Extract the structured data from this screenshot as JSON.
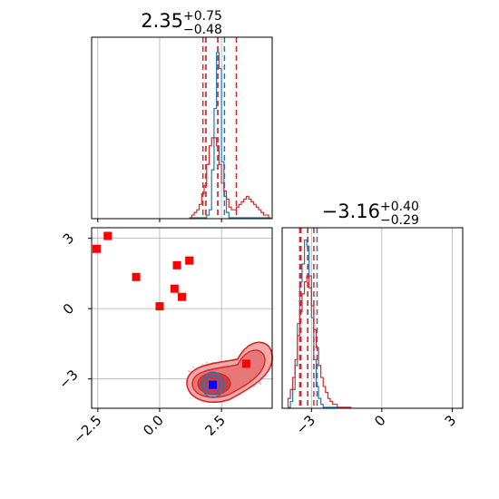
{
  "chart_data": [
    {
      "panel": "marginal-x",
      "type": "histogram",
      "title": {
        "main": "2.35",
        "sup": "+0.75",
        "sub": "−0.48"
      },
      "xlim": [
        -2.75,
        4.55
      ],
      "grid": true,
      "bin_edges": [
        1.2,
        1.3,
        1.4,
        1.5,
        1.6,
        1.7,
        1.8,
        1.9,
        2.0,
        2.1,
        2.2,
        2.3,
        2.4,
        2.5,
        2.6,
        2.7,
        2.8,
        2.9,
        3.0,
        3.1,
        3.2,
        3.3,
        3.4,
        3.5,
        3.6,
        3.7,
        3.8,
        3.9,
        4.0,
        4.1,
        4.2,
        4.3,
        4.4,
        4.5
      ],
      "series": [
        {
          "color": "#1f77b4",
          "counts": [
            0,
            0,
            0,
            0,
            0,
            0,
            0,
            1,
            3,
            18,
            41,
            62,
            56,
            21,
            8,
            2,
            0,
            0,
            0,
            0,
            0,
            0,
            0,
            0,
            0,
            0,
            0,
            0,
            0,
            0,
            0,
            0,
            0
          ]
        },
        {
          "color": "#d62728",
          "counts": [
            0,
            1,
            2,
            3,
            5,
            9,
            12,
            20,
            27,
            30,
            30,
            27,
            20,
            13,
            10,
            7,
            4,
            3,
            3,
            4,
            5,
            6,
            7,
            8,
            7,
            6,
            5,
            4,
            3,
            2,
            1,
            1,
            0
          ]
        }
      ],
      "reference_lines": [
        {
          "color": "#1f77b4",
          "values": [
            1.87,
            2.35,
            2.62
          ]
        },
        {
          "color": "#d62728",
          "values": [
            1.75,
            1.87,
            2.35,
            3.1
          ]
        }
      ]
    },
    {
      "panel": "marginal-y",
      "type": "histogram",
      "title": {
        "main": "−3.16",
        "sup": "+0.40",
        "sub": "−0.29"
      },
      "xlim": [
        -4.25,
        3.45
      ],
      "xticks": [
        -3,
        0,
        3
      ],
      "xtick_labels": [
        "−3",
        "0",
        "3"
      ],
      "grid": true,
      "bin_edges": [
        -4.0,
        -3.9,
        -3.8,
        -3.7,
        -3.6,
        -3.5,
        -3.4,
        -3.3,
        -3.2,
        -3.1,
        -3.0,
        -2.9,
        -2.8,
        -2.7,
        -2.6,
        -2.5,
        -2.4,
        -2.3,
        -2.2,
        -2.1,
        -2.0,
        -1.9,
        -1.8,
        -1.7,
        -1.6,
        -1.5,
        -1.4,
        -1.3
      ],
      "series": [
        {
          "color": "#1f77b4",
          "counts": [
            0,
            2,
            6,
            14,
            28,
            42,
            48,
            56,
            54,
            44,
            30,
            16,
            7,
            3,
            1,
            0,
            0,
            0,
            0,
            0,
            0,
            0,
            0,
            0,
            0,
            0,
            0
          ]
        },
        {
          "color": "#d62728",
          "counts": [
            3,
            6,
            10,
            16,
            24,
            32,
            38,
            42,
            44,
            40,
            34,
            26,
            20,
            14,
            10,
            7,
            5,
            3,
            2,
            1,
            1,
            0,
            0,
            0,
            0,
            0,
            0
          ]
        }
      ],
      "reference_lines": [
        {
          "color": "#1f77b4",
          "values": [
            -3.45,
            -3.16,
            -2.76
          ]
        },
        {
          "color": "#d62728",
          "values": [
            -3.5,
            -3.45,
            -3.16,
            -2.9
          ]
        }
      ]
    },
    {
      "panel": "joint",
      "type": "scatter",
      "xlim": [
        -2.75,
        4.55
      ],
      "ylim": [
        -4.25,
        3.45
      ],
      "xticks": [
        -2.5,
        0.0,
        2.5
      ],
      "xtick_labels": [
        "−2.5",
        "0.0",
        "2.5"
      ],
      "yticks": [
        -3,
        0,
        3
      ],
      "ytick_labels": [
        "−3",
        "0",
        "3"
      ],
      "grid": true,
      "series": [
        {
          "marker": "square",
          "color": "#ff0000",
          "x": [
            -2.55,
            -2.1,
            -0.95,
            0.0,
            0.6,
            0.7,
            0.9,
            1.2,
            3.5
          ],
          "y": [
            2.55,
            3.1,
            1.35,
            0.1,
            0.85,
            1.85,
            0.5,
            2.05,
            -2.35
          ]
        },
        {
          "marker": "square",
          "color": "#0000ff",
          "x": [
            2.15
          ],
          "y": [
            -3.25
          ]
        }
      ],
      "density_contours": [
        {
          "color": "#d62728",
          "center_x": 2.35,
          "center_y": -3.16,
          "extent": "outer"
        },
        {
          "color": "#1f77b4",
          "center_x": 2.15,
          "center_y": -3.25,
          "extent": "inner"
        }
      ]
    }
  ]
}
